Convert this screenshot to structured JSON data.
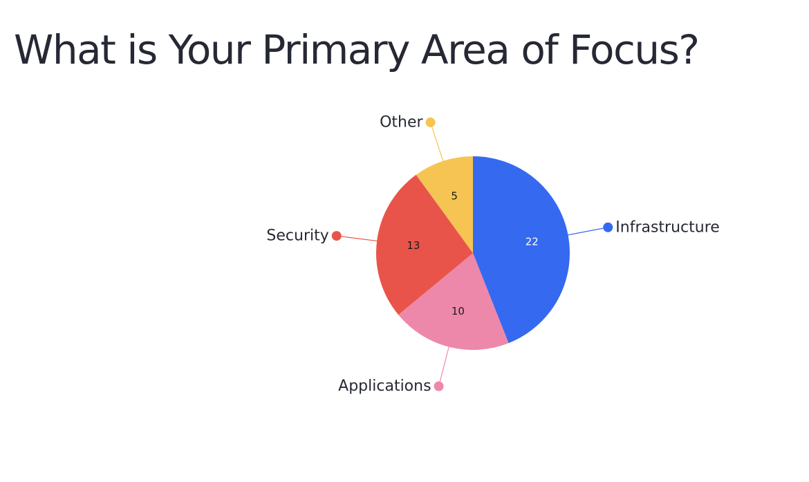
{
  "title": "What is Your Primary Area of Focus?",
  "chart_data": {
    "type": "pie",
    "title": "What is Your Primary Area of Focus?",
    "start_angle_deg": 0,
    "direction": "clockwise",
    "labels_outside": true,
    "slices": [
      {
        "label": "Infrastructure",
        "value": 22,
        "color": "#3569F0",
        "value_text_color": "#FFFFFF"
      },
      {
        "label": "Applications",
        "value": 10,
        "color": "#EE88AA",
        "value_text_color": "#1A1A1A"
      },
      {
        "label": "Security",
        "value": 13,
        "color": "#E9544A",
        "value_text_color": "#1A1A1A"
      },
      {
        "label": "Other",
        "value": 5,
        "color": "#F5C452",
        "value_text_color": "#1A1A1A"
      }
    ]
  }
}
